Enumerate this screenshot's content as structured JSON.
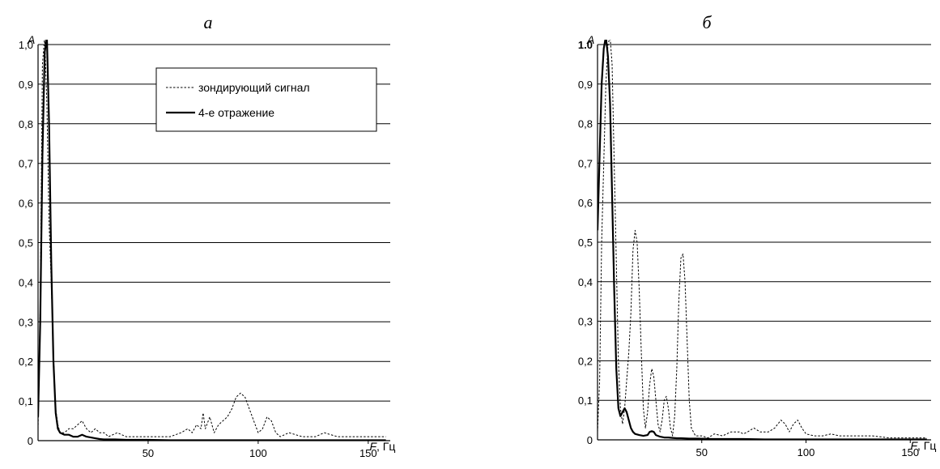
{
  "chart_data": [
    {
      "type": "line",
      "panel_label": "а",
      "ylabel_symbol": "A",
      "xlabel_symbol": "F",
      "xlabel_unit": ", Гц",
      "xlim": [
        0,
        160
      ],
      "ylim": [
        0,
        1.0
      ],
      "y_ticks": [
        {
          "value": 0,
          "label": "0"
        },
        {
          "value": 0.1,
          "label": "0,1"
        },
        {
          "value": 0.2,
          "label": "0,2"
        },
        {
          "value": 0.3,
          "label": "0,3"
        },
        {
          "value": 0.4,
          "label": "0,4"
        },
        {
          "value": 0.5,
          "label": "0,5"
        },
        {
          "value": 0.6,
          "label": "0,6"
        },
        {
          "value": 0.7,
          "label": "0,7"
        },
        {
          "value": 0.8,
          "label": "0,8"
        },
        {
          "value": 0.9,
          "label": "0,9"
        },
        {
          "value": 1.0,
          "label": "1,0"
        }
      ],
      "x_ticks": [
        {
          "value": 50,
          "label": "50"
        },
        {
          "value": 100,
          "label": "100"
        },
        {
          "value": 150,
          "label": "150"
        }
      ],
      "grid": "horizontal",
      "legend_position": "top-right",
      "legend": [
        {
          "label": "зондирующий сигнал",
          "style": "dashed"
        },
        {
          "label": "4-е отражение",
          "style": "solid"
        }
      ],
      "series": [
        {
          "name": "зондирующий сигнал",
          "style": "dashed",
          "points": [
            [
              0,
              0.03
            ],
            [
              1,
              0.35
            ],
            [
              2,
              0.95
            ],
            [
              3,
              1.02
            ],
            [
              4,
              0.85
            ],
            [
              5,
              0.55
            ],
            [
              6,
              0.4
            ],
            [
              7,
              0.22
            ],
            [
              8,
              0.08
            ],
            [
              9,
              0.04
            ],
            [
              10,
              0.02
            ],
            [
              12,
              0.02
            ],
            [
              14,
              0.03
            ],
            [
              16,
              0.03
            ],
            [
              18,
              0.04
            ],
            [
              20,
              0.05
            ],
            [
              22,
              0.03
            ],
            [
              24,
              0.02
            ],
            [
              26,
              0.03
            ],
            [
              28,
              0.02
            ],
            [
              30,
              0.02
            ],
            [
              32,
              0.01
            ],
            [
              36,
              0.02
            ],
            [
              40,
              0.01
            ],
            [
              45,
              0.01
            ],
            [
              50,
              0.01
            ],
            [
              55,
              0.01
            ],
            [
              60,
              0.01
            ],
            [
              65,
              0.02
            ],
            [
              68,
              0.03
            ],
            [
              70,
              0.02
            ],
            [
              72,
              0.04
            ],
            [
              74,
              0.03
            ],
            [
              75,
              0.07
            ],
            [
              76,
              0.03
            ],
            [
              78,
              0.06
            ],
            [
              80,
              0.02
            ],
            [
              82,
              0.04
            ],
            [
              84,
              0.05
            ],
            [
              86,
              0.06
            ],
            [
              88,
              0.08
            ],
            [
              90,
              0.11
            ],
            [
              92,
              0.12
            ],
            [
              94,
              0.11
            ],
            [
              96,
              0.08
            ],
            [
              98,
              0.05
            ],
            [
              100,
              0.02
            ],
            [
              102,
              0.03
            ],
            [
              104,
              0.06
            ],
            [
              106,
              0.05
            ],
            [
              108,
              0.02
            ],
            [
              110,
              0.01
            ],
            [
              114,
              0.02
            ],
            [
              120,
              0.01
            ],
            [
              126,
              0.01
            ],
            [
              130,
              0.02
            ],
            [
              136,
              0.01
            ],
            [
              142,
              0.01
            ],
            [
              150,
              0.01
            ],
            [
              158,
              0.01
            ]
          ]
        },
        {
          "name": "4-е отражение",
          "style": "solid",
          "points": [
            [
              0,
              0.06
            ],
            [
              1,
              0.3
            ],
            [
              2,
              0.72
            ],
            [
              3,
              0.98
            ],
            [
              4,
              1.02
            ],
            [
              5,
              0.8
            ],
            [
              6,
              0.45
            ],
            [
              7,
              0.2
            ],
            [
              8,
              0.07
            ],
            [
              9,
              0.03
            ],
            [
              10,
              0.02
            ],
            [
              12,
              0.015
            ],
            [
              14,
              0.015
            ],
            [
              16,
              0.01
            ],
            [
              18,
              0.01
            ],
            [
              20,
              0.015
            ],
            [
              22,
              0.01
            ],
            [
              24,
              0.008
            ],
            [
              26,
              0.006
            ],
            [
              28,
              0.004
            ],
            [
              30,
              0.003
            ],
            [
              35,
              0.003
            ],
            [
              40,
              0.002
            ],
            [
              50,
              0.002
            ],
            [
              60,
              0.001
            ],
            [
              80,
              0.001
            ],
            [
              100,
              0.001
            ],
            [
              120,
              0.001
            ],
            [
              158,
              0.001
            ]
          ]
        }
      ]
    },
    {
      "type": "line",
      "panel_label": "б",
      "ylabel_symbol": "A",
      "xlabel_symbol": "F",
      "xlabel_unit": ", Гц",
      "xlim": [
        0,
        160
      ],
      "ylim": [
        0,
        1.0
      ],
      "y_ticks": [
        {
          "value": 0,
          "label": "0"
        },
        {
          "value": 0.1,
          "label": "0,1"
        },
        {
          "value": 0.2,
          "label": "0,2"
        },
        {
          "value": 0.3,
          "label": "0,3"
        },
        {
          "value": 0.4,
          "label": "0,4"
        },
        {
          "value": 0.5,
          "label": "0,5"
        },
        {
          "value": 0.6,
          "label": "0,6"
        },
        {
          "value": 0.7,
          "label": "0,7"
        },
        {
          "value": 0.8,
          "label": "0,8"
        },
        {
          "value": 0.9,
          "label": "0,9"
        },
        {
          "value": 1.0,
          "label": "1.0"
        }
      ],
      "x_ticks": [
        {
          "value": 50,
          "label": "50"
        },
        {
          "value": 100,
          "label": "100"
        },
        {
          "value": 150,
          "label": "150"
        }
      ],
      "grid": "horizontal",
      "series": [
        {
          "name": "зондирующий сигнал",
          "style": "dashed",
          "points": [
            [
              0,
              0.02
            ],
            [
              1,
              0.15
            ],
            [
              2,
              0.5
            ],
            [
              4,
              0.9
            ],
            [
              5,
              1.0
            ],
            [
              6,
              1.02
            ],
            [
              7,
              0.95
            ],
            [
              8,
              0.7
            ],
            [
              9,
              0.45
            ],
            [
              10,
              0.2
            ],
            [
              11,
              0.08
            ],
            [
              12,
              0.04
            ],
            [
              13,
              0.08
            ],
            [
              14,
              0.15
            ],
            [
              15,
              0.22
            ],
            [
              16,
              0.32
            ],
            [
              17,
              0.48
            ],
            [
              18,
              0.53
            ],
            [
              19,
              0.5
            ],
            [
              20,
              0.38
            ],
            [
              21,
              0.22
            ],
            [
              22,
              0.08
            ],
            [
              23,
              0.03
            ],
            [
              24,
              0.07
            ],
            [
              25,
              0.14
            ],
            [
              26,
              0.18
            ],
            [
              27,
              0.16
            ],
            [
              28,
              0.1
            ],
            [
              29,
              0.04
            ],
            [
              30,
              0.02
            ],
            [
              31,
              0.05
            ],
            [
              32,
              0.1
            ],
            [
              33,
              0.11
            ],
            [
              34,
              0.08
            ],
            [
              35,
              0.03
            ],
            [
              36,
              0.01
            ],
            [
              37,
              0.06
            ],
            [
              38,
              0.18
            ],
            [
              39,
              0.35
            ],
            [
              40,
              0.46
            ],
            [
              41,
              0.47
            ],
            [
              42,
              0.4
            ],
            [
              43,
              0.25
            ],
            [
              44,
              0.1
            ],
            [
              45,
              0.03
            ],
            [
              47,
              0.01
            ],
            [
              50,
              0.01
            ],
            [
              53,
              0.005
            ],
            [
              56,
              0.015
            ],
            [
              60,
              0.01
            ],
            [
              64,
              0.02
            ],
            [
              68,
              0.02
            ],
            [
              70,
              0.015
            ],
            [
              72,
              0.02
            ],
            [
              75,
              0.03
            ],
            [
              78,
              0.02
            ],
            [
              82,
              0.02
            ],
            [
              85,
              0.03
            ],
            [
              88,
              0.05
            ],
            [
              90,
              0.04
            ],
            [
              92,
              0.02
            ],
            [
              94,
              0.04
            ],
            [
              96,
              0.05
            ],
            [
              98,
              0.03
            ],
            [
              100,
              0.015
            ],
            [
              104,
              0.01
            ],
            [
              108,
              0.01
            ],
            [
              112,
              0.015
            ],
            [
              116,
              0.01
            ],
            [
              120,
              0.01
            ],
            [
              126,
              0.01
            ],
            [
              132,
              0.01
            ],
            [
              140,
              0.005
            ],
            [
              150,
              0.005
            ],
            [
              158,
              0.005
            ]
          ]
        },
        {
          "name": "4-е отражение",
          "style": "solid",
          "points": [
            [
              0,
              0.53
            ],
            [
              1,
              0.72
            ],
            [
              2,
              0.9
            ],
            [
              3,
              0.99
            ],
            [
              4,
              1.02
            ],
            [
              5,
              0.97
            ],
            [
              6,
              0.85
            ],
            [
              7,
              0.62
            ],
            [
              8,
              0.38
            ],
            [
              9,
              0.18
            ],
            [
              10,
              0.08
            ],
            [
              11,
              0.06
            ],
            [
              12,
              0.07
            ],
            [
              13,
              0.08
            ],
            [
              14,
              0.07
            ],
            [
              15,
              0.05
            ],
            [
              16,
              0.03
            ],
            [
              17,
              0.02
            ],
            [
              18,
              0.015
            ],
            [
              20,
              0.012
            ],
            [
              22,
              0.01
            ],
            [
              24,
              0.012
            ],
            [
              25,
              0.02
            ],
            [
              26,
              0.022
            ],
            [
              27,
              0.02
            ],
            [
              28,
              0.012
            ],
            [
              30,
              0.008
            ],
            [
              32,
              0.006
            ],
            [
              34,
              0.006
            ],
            [
              36,
              0.005
            ],
            [
              38,
              0.004
            ],
            [
              40,
              0.004
            ],
            [
              44,
              0.003
            ],
            [
              48,
              0.003
            ],
            [
              55,
              0.002
            ],
            [
              60,
              0.002
            ],
            [
              70,
              0.002
            ],
            [
              80,
              0.001
            ],
            [
              100,
              0.001
            ],
            [
              120,
              0.001
            ],
            [
              158,
              0.001
            ]
          ]
        }
      ]
    }
  ]
}
